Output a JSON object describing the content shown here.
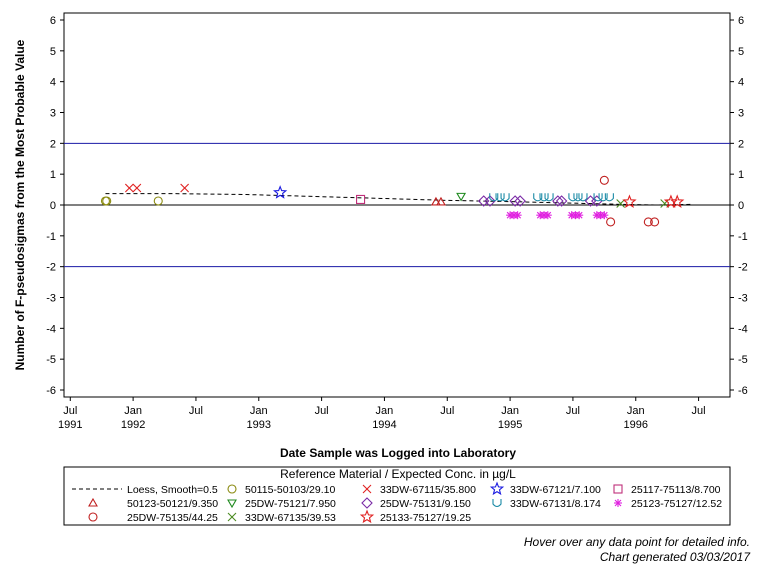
{
  "chart_data": {
    "type": "scatter",
    "xlabel": "Date Sample was Logged into Laboratory",
    "ylabel": "Number of F-pseudosigmas from the Most Probable Value",
    "ylim": [
      -6,
      6
    ],
    "yticks": [
      6,
      5,
      4,
      3,
      2,
      1,
      0,
      -1,
      -2,
      -3,
      -4,
      -5,
      -6
    ],
    "xlim": [
      1991.45,
      1996.75
    ],
    "xticks": [
      {
        "value": 1991.5,
        "line1": "Jul",
        "line2": "1991"
      },
      {
        "value": 1992.0,
        "line1": "Jan",
        "line2": "1992"
      },
      {
        "value": 1992.5,
        "line1": "Jul",
        "line2": ""
      },
      {
        "value": 1993.0,
        "line1": "Jan",
        "line2": "1993"
      },
      {
        "value": 1993.5,
        "line1": "Jul",
        "line2": ""
      },
      {
        "value": 1994.0,
        "line1": "Jan",
        "line2": "1994"
      },
      {
        "value": 1994.5,
        "line1": "Jul",
        "line2": ""
      },
      {
        "value": 1995.0,
        "line1": "Jan",
        "line2": "1995"
      },
      {
        "value": 1995.5,
        "line1": "Jul",
        "line2": ""
      },
      {
        "value": 1996.0,
        "line1": "Jan",
        "line2": "1996"
      },
      {
        "value": 1996.5,
        "line1": "Jul",
        "line2": ""
      }
    ],
    "reference_lines": [
      {
        "y": 2,
        "color": "#1a1aa6"
      },
      {
        "y": 0,
        "color": "#000000"
      },
      {
        "y": -2,
        "color": "#1a1aa6"
      }
    ],
    "loess": {
      "name": "Loess, Smooth=0.5",
      "points": [
        [
          1991.78,
          0.37
        ],
        [
          1992.3,
          0.37
        ],
        [
          1992.9,
          0.34
        ],
        [
          1993.5,
          0.27
        ],
        [
          1994.0,
          0.21
        ],
        [
          1994.5,
          0.15
        ],
        [
          1995.0,
          0.11
        ],
        [
          1995.5,
          0.06
        ],
        [
          1995.9,
          0.02
        ],
        [
          1996.15,
          0.0
        ],
        [
          1996.45,
          0.02
        ]
      ]
    },
    "legend_title": "Reference Material / Expected Conc. in µg/L",
    "series": [
      {
        "name": "50123-50121/9.350",
        "marker": "triangle",
        "color": "#c02020",
        "points": [
          [
            1994.41,
            0.1
          ],
          [
            1994.45,
            0.1
          ]
        ]
      },
      {
        "name": "25DW-75135/44.25",
        "marker": "circle",
        "color": "#c02020",
        "points": [
          [
            1995.75,
            0.8
          ],
          [
            1995.8,
            -0.55
          ],
          [
            1996.1,
            -0.55
          ],
          [
            1996.15,
            -0.55
          ]
        ]
      },
      {
        "name": "50115-50103/29.10",
        "marker": "circle",
        "color": "#8a8a10",
        "points": [
          [
            1991.78,
            0.13
          ],
          [
            1991.79,
            0.13
          ],
          [
            1992.2,
            0.13
          ]
        ]
      },
      {
        "name": "25DW-75121/7.950",
        "marker": "triangle-down",
        "color": "#1f8a1f",
        "points": [
          [
            1994.61,
            0.28
          ]
        ]
      },
      {
        "name": "33DW-67135/39.53",
        "marker": "x",
        "color": "#4a8a1f",
        "points": [
          [
            1995.88,
            0.05
          ],
          [
            1996.23,
            0.05
          ]
        ]
      },
      {
        "name": "33DW-67115/35.800",
        "marker": "x",
        "color": "#e02020",
        "points": [
          [
            1991.97,
            0.55
          ],
          [
            1992.03,
            0.55
          ],
          [
            1992.41,
            0.55
          ]
        ]
      },
      {
        "name": "25DW-75131/9.150",
        "marker": "diamond",
        "color": "#7a2aa6",
        "points": [
          [
            1994.79,
            0.13
          ],
          [
            1994.84,
            0.13
          ],
          [
            1995.04,
            0.13
          ],
          [
            1995.08,
            0.13
          ],
          [
            1995.38,
            0.13
          ],
          [
            1995.41,
            0.13
          ],
          [
            1995.64,
            0.13
          ],
          [
            1995.69,
            0.13
          ]
        ]
      },
      {
        "name": "25133-75127/19.25",
        "marker": "star",
        "color": "#e02020",
        "points": [
          [
            1995.95,
            0.1
          ],
          [
            1996.28,
            0.1
          ],
          [
            1996.33,
            0.1
          ]
        ]
      },
      {
        "name": "33DW-67121/7.100",
        "marker": "star",
        "color": "#1a1ae0",
        "points": [
          [
            1993.17,
            0.4
          ]
        ]
      },
      {
        "name": "33DW-67131/8.174",
        "marker": "cup",
        "color": "#1a8aa6",
        "points": [
          [
            1994.87,
            0.25
          ],
          [
            1994.92,
            0.25
          ],
          [
            1994.96,
            0.25
          ],
          [
            1995.22,
            0.25
          ],
          [
            1995.27,
            0.25
          ],
          [
            1995.31,
            0.25
          ],
          [
            1995.5,
            0.25
          ],
          [
            1995.54,
            0.25
          ],
          [
            1995.58,
            0.25
          ],
          [
            1995.7,
            0.25
          ],
          [
            1995.74,
            0.25
          ],
          [
            1995.79,
            0.25
          ]
        ]
      },
      {
        "name": "25117-75113/8.700",
        "marker": "square",
        "color": "#c0307a",
        "points": [
          [
            1993.81,
            0.18
          ]
        ]
      },
      {
        "name": "25123-75127/12.52",
        "marker": "asterisk",
        "color": "#e020e0",
        "points": [
          [
            1995.0,
            -0.33
          ],
          [
            1995.03,
            -0.33
          ],
          [
            1995.06,
            -0.33
          ],
          [
            1995.24,
            -0.33
          ],
          [
            1995.27,
            -0.33
          ],
          [
            1995.3,
            -0.33
          ],
          [
            1995.49,
            -0.33
          ],
          [
            1995.52,
            -0.33
          ],
          [
            1995.55,
            -0.33
          ],
          [
            1995.69,
            -0.33
          ],
          [
            1995.72,
            -0.33
          ],
          [
            1995.75,
            -0.33
          ]
        ]
      }
    ]
  },
  "footer": {
    "hover_note": "Hover over any data point for detailed info.",
    "generated": "Chart generated 03/03/2017"
  }
}
